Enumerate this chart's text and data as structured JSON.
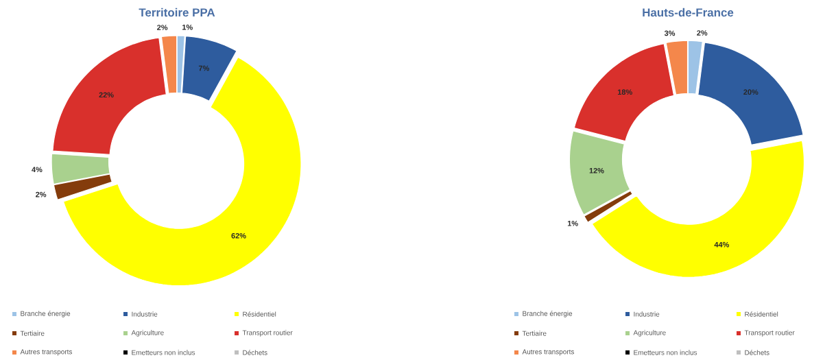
{
  "chart_data": [
    {
      "type": "donut",
      "title": "Territoire PPA",
      "categories": [
        "Branche énergie",
        "Industrie",
        "Résidentiel",
        "Tertiaire",
        "Agriculture",
        "Transport routier",
        "Autres transports",
        "Emetteurs non inclus",
        "Déchets"
      ],
      "values": [
        1,
        7,
        62,
        2,
        4,
        22,
        2,
        0,
        0
      ],
      "value_labels": [
        "1%",
        "7%",
        "62%",
        "2%",
        "4%",
        "22%",
        "2%",
        null,
        null
      ],
      "colors": [
        "#9dc3e6",
        "#2e5c9e",
        "#ffff00",
        "#843c0c",
        "#a9d18e",
        "#d9302c",
        "#f4874b",
        "#000000",
        "#bfbfbf"
      ],
      "legend": "bottom"
    },
    {
      "type": "donut",
      "title": "Hauts-de-France",
      "categories": [
        "Branche énergie",
        "Industrie",
        "Résidentiel",
        "Tertiaire",
        "Agriculture",
        "Transport routier",
        "Autres transports",
        "Emetteurs non inclus",
        "Déchets"
      ],
      "values": [
        2,
        20,
        44,
        1,
        12,
        18,
        3,
        0,
        0
      ],
      "value_labels": [
        "2%",
        "20%",
        "44%",
        "1%",
        "12%",
        "18%",
        "3%",
        null,
        null
      ],
      "colors": [
        "#9dc3e6",
        "#2e5c9e",
        "#ffff00",
        "#843c0c",
        "#a9d18e",
        "#d9302c",
        "#f4874b",
        "#000000",
        "#bfbfbf"
      ],
      "legend": "bottom"
    }
  ]
}
